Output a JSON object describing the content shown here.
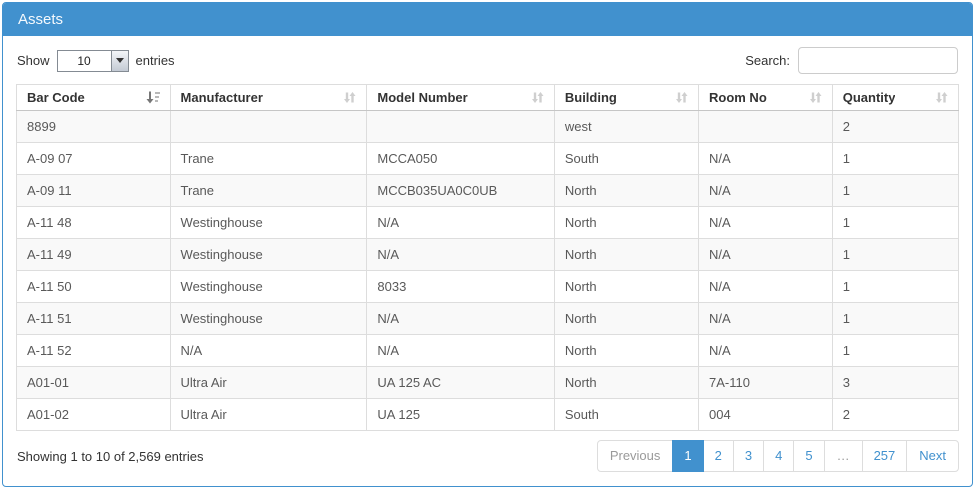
{
  "panel": {
    "title": "Assets"
  },
  "controls": {
    "show_label": "Show",
    "entries_label": "entries",
    "page_length": "10",
    "search_label": "Search:",
    "search_value": ""
  },
  "table": {
    "columns": [
      {
        "label": "Bar Code",
        "sort": "asc"
      },
      {
        "label": "Manufacturer",
        "sort": "none"
      },
      {
        "label": "Model Number",
        "sort": "none"
      },
      {
        "label": "Building",
        "sort": "none"
      },
      {
        "label": "Room No",
        "sort": "none"
      },
      {
        "label": "Quantity",
        "sort": "none"
      }
    ],
    "rows": [
      [
        "8899",
        "",
        "",
        "west",
        "",
        "2"
      ],
      [
        "A-09 07",
        "Trane",
        "MCCA050",
        "South",
        "N/A",
        "1"
      ],
      [
        "A-09 11",
        "Trane",
        "MCCB035UA0C0UB",
        "North",
        "N/A",
        "1"
      ],
      [
        "A-11 48",
        "Westinghouse",
        "N/A",
        "North",
        "N/A",
        "1"
      ],
      [
        "A-11 49",
        "Westinghouse",
        "N/A",
        "North",
        "N/A",
        "1"
      ],
      [
        "A-11 50",
        "Westinghouse",
        "8033",
        "North",
        "N/A",
        "1"
      ],
      [
        "A-11 51",
        "Westinghouse",
        "N/A",
        "North",
        "N/A",
        "1"
      ],
      [
        "A-11 52",
        "N/A",
        "N/A",
        "North",
        "N/A",
        "1"
      ],
      [
        "A01-01",
        "Ultra Air",
        "UA 125 AC",
        "North",
        "7A-110",
        "3"
      ],
      [
        "A01-02",
        "Ultra Air",
        "UA 125",
        "South",
        "004",
        "2"
      ]
    ]
  },
  "footer": {
    "info": "Showing 1 to 10 of 2,569 entries",
    "pagination": [
      {
        "label": "Previous",
        "state": "disabled"
      },
      {
        "label": "1",
        "state": "active"
      },
      {
        "label": "2",
        "state": "link"
      },
      {
        "label": "3",
        "state": "link"
      },
      {
        "label": "4",
        "state": "link"
      },
      {
        "label": "5",
        "state": "link"
      },
      {
        "label": "…",
        "state": "ellipsis"
      },
      {
        "label": "257",
        "state": "link"
      },
      {
        "label": "Next",
        "state": "link"
      }
    ]
  },
  "colors": {
    "accent": "#4191ce",
    "stripe": "#f9f9f9",
    "table_border": "#dddddd"
  }
}
